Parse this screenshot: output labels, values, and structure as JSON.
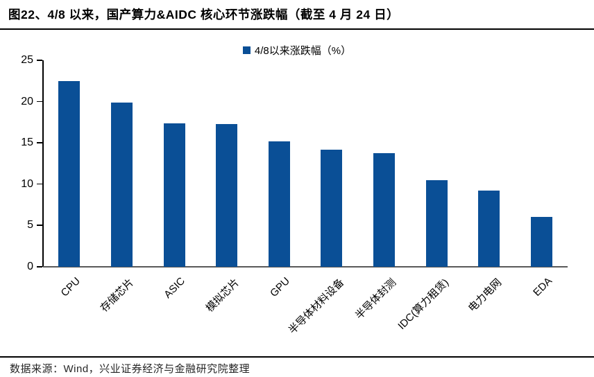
{
  "header": {
    "title": "图22、4/8 以来，国产算力&AIDC 核心环节涨跌幅（截至 4 月 24 日）"
  },
  "chart_data": {
    "type": "bar",
    "legend": [
      "4/8以来涨跌幅（%）"
    ],
    "legend_position": "top-center",
    "categories": [
      "CPU",
      "存储芯片",
      "ASIC",
      "模拟芯片",
      "GPU",
      "半导体材料设备",
      "半导体封测",
      "IDC(算力租赁)",
      "电力电网",
      "EDA"
    ],
    "values": [
      22.5,
      19.9,
      17.4,
      17.3,
      15.2,
      14.2,
      13.8,
      10.5,
      9.2,
      6.0
    ],
    "ylim": [
      0,
      25
    ],
    "yticks": [
      0,
      5,
      10,
      15,
      20,
      25
    ],
    "grid": false,
    "bar_color": "#0a4f96",
    "axis_color": "#000000",
    "baseline_color": "#595959"
  },
  "footer": {
    "source": "数据来源：Wind，兴业证券经济与金融研究院整理"
  }
}
